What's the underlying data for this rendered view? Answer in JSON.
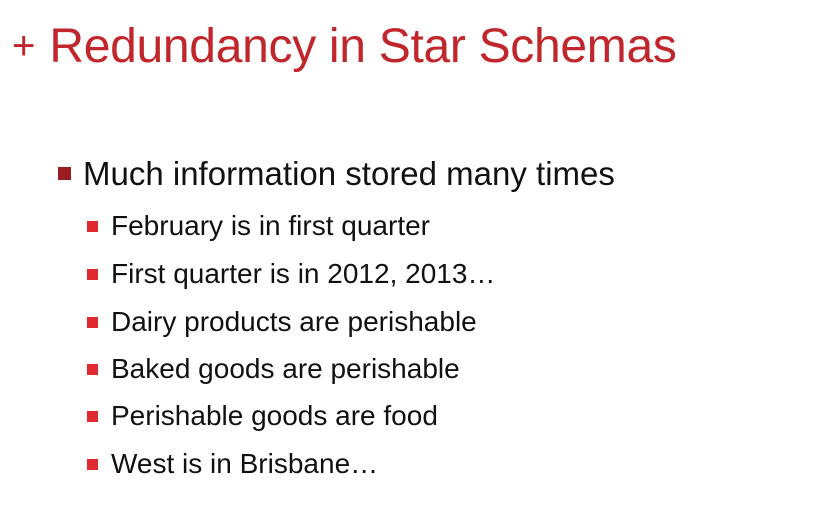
{
  "slide": {
    "title_prefix": "+",
    "title": "Redundancy in Star Schemas",
    "bullet": "Much information stored many times",
    "sub_bullets": [
      "February is in first quarter",
      "First quarter is in 2012, 2013…",
      "Dairy products are perishable",
      "Baked goods are perishable",
      "Perishable goods are food",
      "West is in Brisbane…"
    ]
  },
  "colors": {
    "title": "#c0262b",
    "bullet_level1": "#9b1c20",
    "bullet_level2": "#e02a2f",
    "text": "#111111",
    "background": "#ffffff"
  },
  "icons": {
    "title_marker": "plus-icon",
    "bullet_marker": "square-bullet-icon"
  }
}
